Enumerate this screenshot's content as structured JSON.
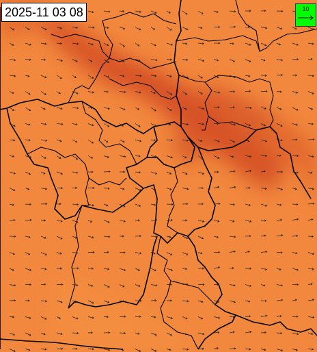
{
  "timestamp": "2025-11 03 08",
  "legend": {
    "label": "10"
  }
}
